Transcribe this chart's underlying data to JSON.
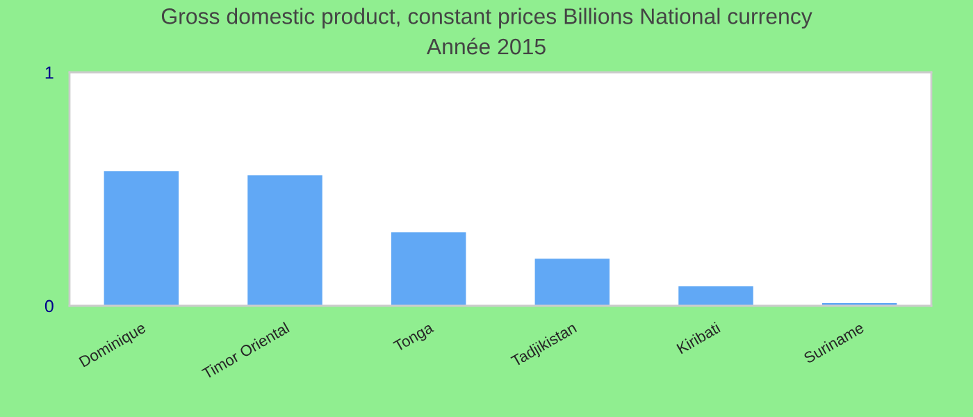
{
  "chart_data": {
    "type": "bar",
    "title": "Gross domestic product, constant prices Billions National currency\nAnnée 2015",
    "categories": [
      "Dominique",
      "Timor Oriental",
      "Tonga",
      "Tadjikistan",
      "Kiribati",
      "Suriname"
    ],
    "values": [
      0.577,
      0.559,
      0.315,
      0.202,
      0.083,
      0.012
    ],
    "color": "#61a8f5",
    "ylim": [
      0,
      1
    ],
    "yticks": [
      0,
      1
    ],
    "grid": false
  }
}
